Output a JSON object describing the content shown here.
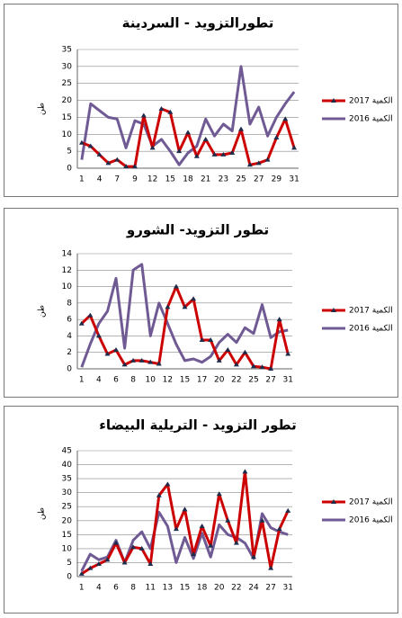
{
  "chart_data": [
    {
      "type": "line",
      "title": "تطورالتزويد - السردينة",
      "y_label": "طن",
      "categories": [
        "1",
        null,
        "4",
        null,
        "7",
        null,
        "9",
        null,
        "12",
        null,
        "15",
        null,
        "18",
        null,
        "21",
        null,
        "23",
        null,
        "25",
        null,
        "27",
        null,
        "29",
        null,
        "31"
      ],
      "ylim": [
        0,
        35
      ],
      "yticks": [
        0,
        5,
        10,
        15,
        20,
        25,
        30,
        35
      ],
      "series": [
        {
          "name": "الكمية 2017",
          "color": "#cc0000",
          "values": [
            7.5,
            6.5,
            4,
            1.5,
            2.5,
            0.5,
            0.5,
            15.5,
            6,
            17.5,
            16.5,
            5,
            10.5,
            3.5,
            8.5,
            4,
            4,
            4.5,
            11.5,
            1,
            1.5,
            2.5,
            9,
            14.5,
            6
          ]
        },
        {
          "name": "الكمية 2016",
          "color": "#6f5a94",
          "values": [
            2.5,
            19,
            17,
            15,
            14.5,
            6,
            14,
            13,
            6.5,
            8.5,
            5,
            1,
            4.5,
            6.5,
            14.5,
            9.5,
            13,
            11,
            30,
            13,
            18,
            9.5,
            15,
            19,
            22.5
          ]
        }
      ]
    },
    {
      "type": "line",
      "title": "تطور التزويد- الشورو",
      "y_label": "طن",
      "categories": [
        "1",
        null,
        "4",
        null,
        "6",
        null,
        "8",
        null,
        "10",
        null,
        "12",
        null,
        "15",
        null,
        "17",
        null,
        "20",
        null,
        "22",
        null,
        "25",
        null,
        "27",
        null,
        "31"
      ],
      "ylim": [
        0,
        14
      ],
      "yticks": [
        0,
        2,
        4,
        6,
        8,
        10,
        12,
        14
      ],
      "series": [
        {
          "name": "الكمية 2017",
          "color": "#cc0000",
          "values": [
            5.5,
            6.5,
            4,
            1.8,
            2.3,
            0.5,
            1,
            1,
            0.8,
            0.6,
            7.5,
            10,
            7.5,
            8.5,
            3.5,
            3.5,
            1,
            2.3,
            0.5,
            2,
            0.3,
            0.2,
            0,
            6,
            1.8
          ]
        },
        {
          "name": "الكمية 2016",
          "color": "#6f5a94",
          "values": [
            0.2,
            3,
            5.5,
            7,
            11,
            2.5,
            12,
            12.7,
            4,
            8,
            5.5,
            3,
            1,
            1.2,
            0.8,
            1.5,
            3.2,
            4.2,
            3.2,
            5,
            4.3,
            7.8,
            3.8,
            4.5,
            4.7
          ]
        }
      ]
    },
    {
      "type": "line",
      "title": "تطور التزويد - التريلية البيضاء",
      "y_label": "طن",
      "categories": [
        "1",
        null,
        "4",
        null,
        "6",
        null,
        "8",
        null,
        "11",
        null,
        "13",
        null,
        "15",
        null,
        "18",
        null,
        "20",
        null,
        "22",
        null,
        "24",
        null,
        "27",
        null,
        "31"
      ],
      "ylim": [
        0,
        45
      ],
      "yticks": [
        0,
        5,
        10,
        15,
        20,
        25,
        30,
        35,
        40,
        45
      ],
      "series": [
        {
          "name": "الكمية 2017",
          "color": "#cc0000",
          "values": [
            1,
            3,
            4.5,
            6,
            12,
            5,
            10.5,
            10,
            4.5,
            29,
            33,
            17,
            24,
            8,
            18,
            11,
            29.5,
            20,
            12,
            37.5,
            7,
            20,
            3,
            17,
            23.5
          ]
        },
        {
          "name": "الكمية 2016",
          "color": "#6f5a94",
          "values": [
            2,
            8,
            6,
            7,
            13,
            5,
            13,
            16,
            10,
            23,
            18,
            5,
            14,
            6.5,
            15.5,
            7,
            18.5,
            15,
            14,
            12,
            6.5,
            22.5,
            17.5,
            16,
            15
          ]
        }
      ]
    }
  ]
}
